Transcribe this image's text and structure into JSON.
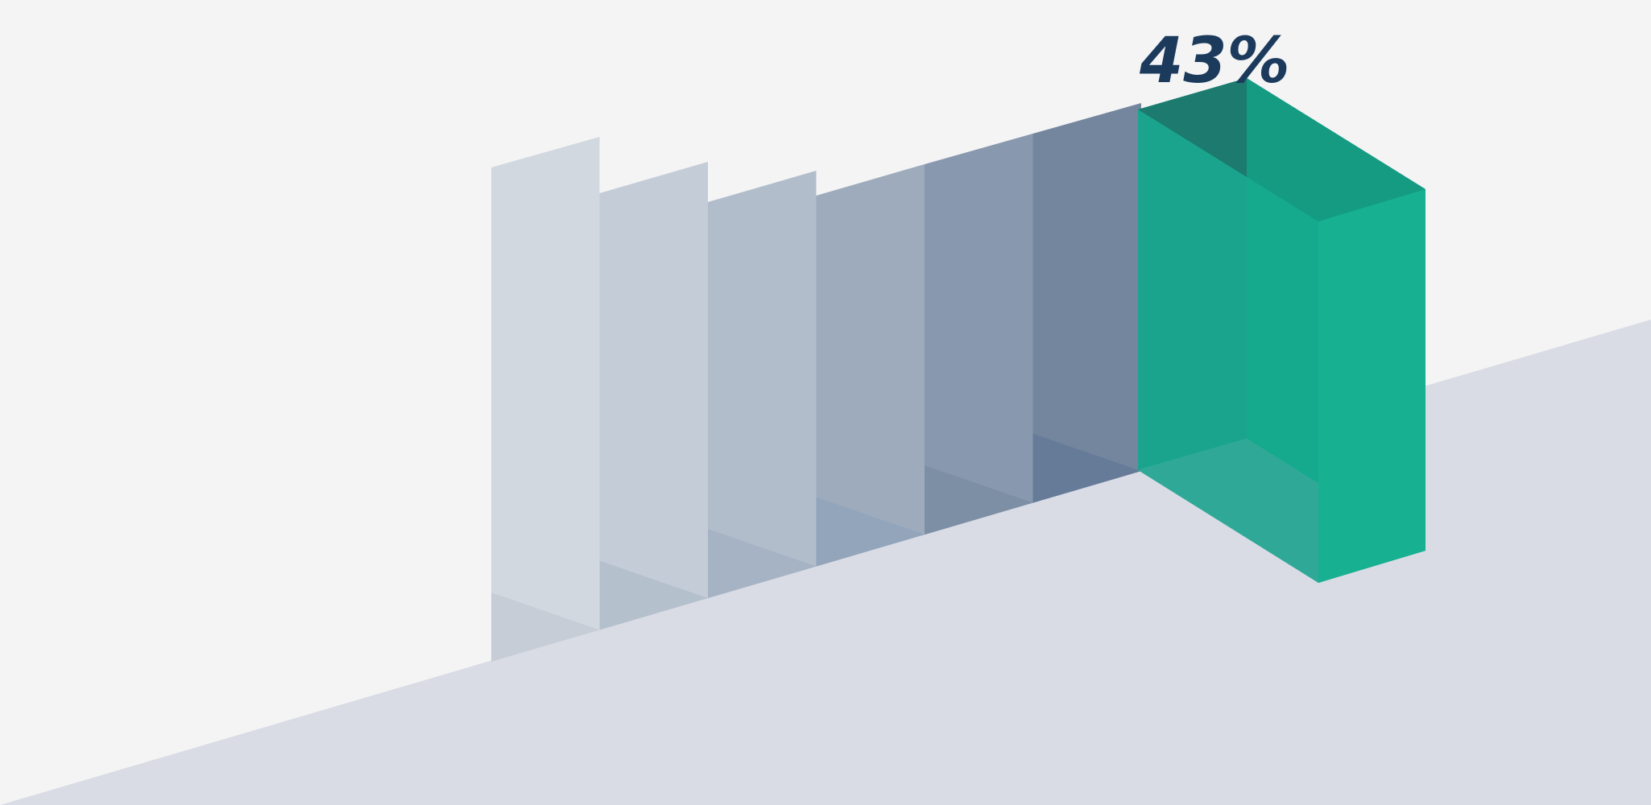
{
  "chart_data": {
    "type": "bar",
    "style": "isometric-3d",
    "panels": 6,
    "highlight": {
      "label": "43%",
      "value": 43,
      "unit": "%"
    }
  },
  "colors": {
    "background": "#f4f4f5",
    "floor": "#d9dce5",
    "label": "#1b3a5c",
    "panels": [
      "#d2d8e0",
      "#c4ccd8",
      "#b2bdcb",
      "#9eabbc",
      "#8898ae",
      "#74869e"
    ],
    "panel_reflections": [
      "#c7cdd6",
      "#b5c0cd",
      "#a6b3c4",
      "#92a5bb",
      "#7c8fa5",
      "#667b98"
    ],
    "box": {
      "top": "#149b82",
      "top_back": "#1c7a6e",
      "back_left": "#1d968a",
      "back_right": "#13a08a",
      "front_left": "#17b091",
      "bottom_left": "#30a897",
      "bottom_right": "#36b9a0"
    }
  }
}
